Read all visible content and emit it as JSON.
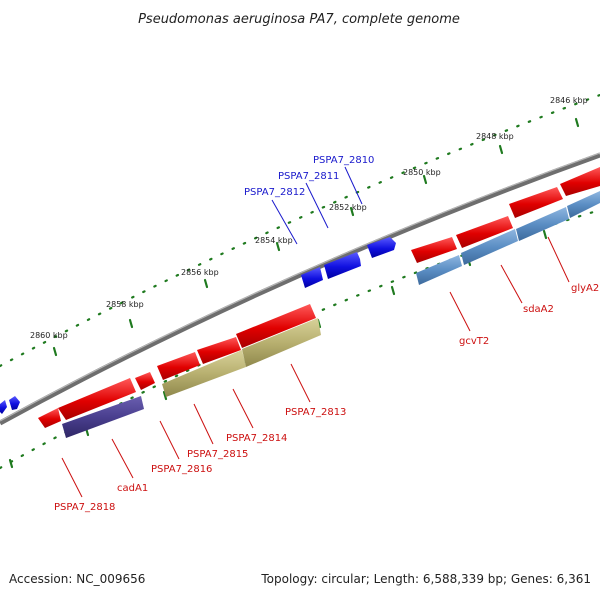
{
  "title": "Pseudomonas aeruginosa PA7, complete genome",
  "footer": {
    "accession": "Accession: NC_009656",
    "topology": "Topology: circular; Length: 6,588,339 bp; Genes: 6,361"
  },
  "scale_labels": [
    "2846 kbp",
    "2848 kbp",
    "2850 kbp",
    "2852 kbp",
    "2854 kbp",
    "2856 kbp",
    "2858 kbp",
    "2860 kbp"
  ],
  "gene_labels_top": [
    "PSPA7_2810",
    "PSPA7_2811",
    "PSPA7_2812"
  ],
  "gene_labels_bottom": [
    "glyA2",
    "sdaA2",
    "gcvT2",
    "PSPA7_2813",
    "PSPA7_2814",
    "PSPA7_2815",
    "PSPA7_2816",
    "cadA1",
    "PSPA7_2818"
  ],
  "colors": {
    "backbone": "#808080",
    "tick": "#1f7a1f",
    "forward_gene": "#2020e0",
    "reverse_gene": "#e01010",
    "top_label": "#1a1acc",
    "bottom_label": "#cc1010",
    "feature_blue": "#5b8ec4",
    "feature_olive": "#b8b070",
    "feature_purple": "#4a3f8f"
  }
}
